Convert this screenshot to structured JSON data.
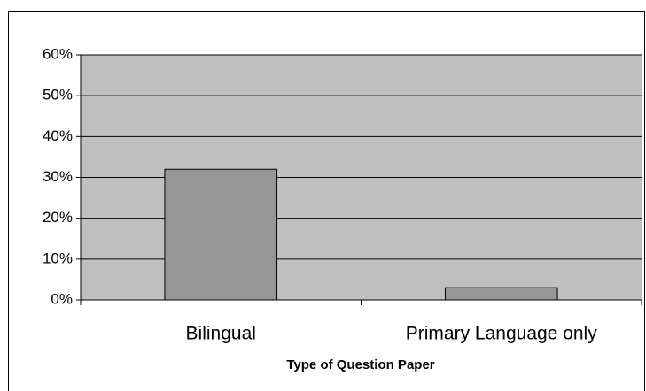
{
  "chart_data": {
    "type": "bar",
    "x_label": "Type of Question Paper",
    "categories": [
      "Bilingual",
      "Primary Language only"
    ],
    "values": [
      32,
      3
    ],
    "color": "#969696",
    "plot_background": "#c0c0c0",
    "ylim": [
      0,
      60
    ],
    "yticks": [
      {
        "value": 0,
        "label": "0%"
      },
      {
        "value": 10,
        "label": "10%"
      },
      {
        "value": 20,
        "label": "20%"
      },
      {
        "value": 30,
        "label": "30%"
      },
      {
        "value": 40,
        "label": "40%"
      },
      {
        "value": 50,
        "label": "50%"
      },
      {
        "value": 60,
        "label": "60%"
      }
    ],
    "grid": true
  }
}
